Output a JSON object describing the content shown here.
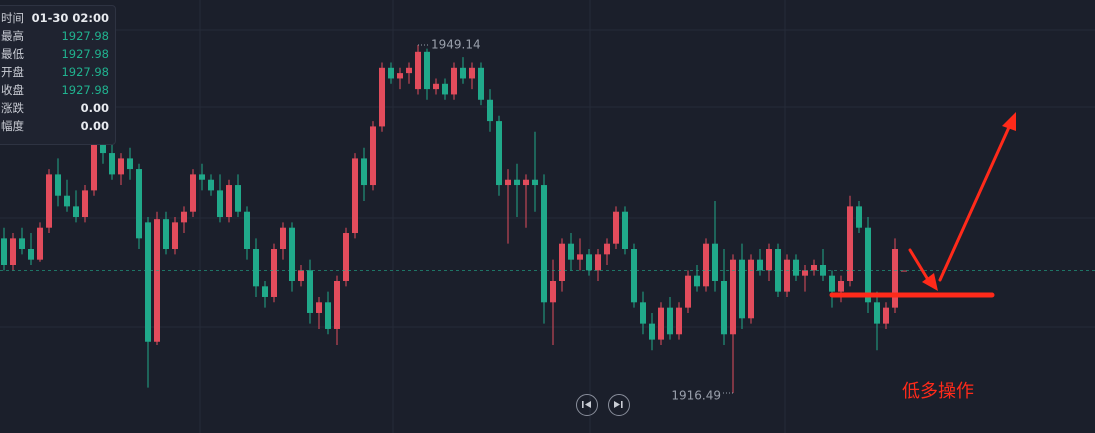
{
  "chart_data": {
    "type": "candlestick",
    "up_color": "#e24c5c",
    "down_color": "#20a98a",
    "ylim": [
      1912.74,
      1953.36
    ],
    "annotation": "低多操作",
    "open": [
      1931.0,
      1928.5,
      1931.0,
      1930.0,
      1929.0,
      1932.0,
      1937.0,
      1935.0,
      1934.0,
      1933.0,
      1935.5,
      1941.0,
      1939.0,
      1937.0,
      1938.5,
      1937.5,
      1932.5,
      1921.3,
      1932.8,
      1930.0,
      1932.5,
      1933.5,
      1937.0,
      1936.5,
      1935.5,
      1933.0,
      1936.0,
      1933.5,
      1930.0,
      1926.5,
      1925.5,
      1930.0,
      1932.0,
      1927.0,
      1928.0,
      1924.0,
      1925.0,
      1922.5,
      1927.0,
      1931.5,
      1938.5,
      1936.0,
      1941.5,
      1947.0,
      1946.0,
      1946.5,
      1945.0,
      1948.5,
      1945.0,
      1945.5,
      1944.5,
      1947.0,
      1946.0,
      1947.0,
      1944.0,
      1942.0,
      1936.0,
      1936.5,
      1936.0,
      1936.5,
      1936.0,
      1925.0,
      1927.0,
      1930.5,
      1929.0,
      1929.5,
      1928.0,
      1929.5,
      1930.5,
      1933.5,
      1930.0,
      1925.0,
      1923.0,
      1921.5,
      1924.5,
      1922.0,
      1924.5,
      1927.5,
      1926.5,
      1930.5,
      1927.0,
      1922.0,
      1929.0,
      1923.5,
      1929.0,
      1928.0,
      1930.0,
      1926.0,
      1929.0,
      1927.5,
      1928.0,
      1928.5,
      1927.5,
      1926.0,
      1927.0,
      1934.0,
      1932.0,
      1925.0,
      1923.0,
      1924.5,
      1927.98
    ],
    "high": [
      1932.0,
      1931.5,
      1932.0,
      1931.5,
      1932.5,
      1937.5,
      1938.5,
      1936.5,
      1935.5,
      1936.0,
      1942.0,
      1942.5,
      1940.5,
      1939.0,
      1939.5,
      1938.0,
      1933.0,
      1933.5,
      1933.5,
      1933.0,
      1934.0,
      1937.5,
      1938.0,
      1937.0,
      1937.0,
      1936.5,
      1937.0,
      1934.0,
      1931.0,
      1927.0,
      1930.5,
      1932.5,
      1932.5,
      1928.5,
      1929.0,
      1925.5,
      1926.0,
      1927.5,
      1932.0,
      1939.0,
      1939.5,
      1942.0,
      1947.5,
      1947.5,
      1947.0,
      1947.5,
      1949.14,
      1948.8,
      1946.0,
      1946.0,
      1947.5,
      1948.0,
      1947.5,
      1947.5,
      1945.0,
      1942.5,
      1937.5,
      1938.0,
      1937.0,
      1941.0,
      1937.0,
      1929.0,
      1931.0,
      1931.5,
      1931.0,
      1930.0,
      1930.0,
      1931.0,
      1934.0,
      1934.0,
      1930.5,
      1926.0,
      1924.0,
      1925.0,
      1925.5,
      1925.0,
      1928.0,
      1928.5,
      1931.0,
      1934.5,
      1930.0,
      1929.5,
      1930.5,
      1929.5,
      1930.0,
      1930.5,
      1930.5,
      1929.5,
      1929.5,
      1928.5,
      1929.0,
      1930.0,
      1928.0,
      1927.5,
      1935.0,
      1934.5,
      1933.0,
      1926.0,
      1925.0,
      1931.0,
      1927.98
    ],
    "low": [
      1928.0,
      1928.0,
      1929.5,
      1928.5,
      1928.8,
      1931.5,
      1934.0,
      1933.5,
      1932.5,
      1932.5,
      1935.0,
      1938.0,
      1936.5,
      1936.0,
      1936.5,
      1930.0,
      1917.0,
      1921.0,
      1929.5,
      1929.5,
      1931.5,
      1933.0,
      1935.5,
      1935.0,
      1932.5,
      1932.5,
      1933.0,
      1929.0,
      1925.5,
      1924.5,
      1925.0,
      1929.0,
      1926.0,
      1926.5,
      1923.0,
      1922.5,
      1922.0,
      1921.0,
      1926.5,
      1931.0,
      1934.5,
      1935.5,
      1941.0,
      1945.5,
      1945.0,
      1945.5,
      1944.5,
      1944.0,
      1944.5,
      1944.0,
      1944.0,
      1945.5,
      1945.0,
      1943.5,
      1941.0,
      1935.0,
      1930.5,
      1933.0,
      1932.0,
      1933.5,
      1923.0,
      1921.0,
      1926.0,
      1928.0,
      1928.0,
      1927.5,
      1927.0,
      1928.5,
      1930.0,
      1929.5,
      1924.5,
      1922.0,
      1920.5,
      1921.0,
      1921.5,
      1921.5,
      1924.0,
      1926.0,
      1926.0,
      1926.0,
      1921.0,
      1916.49,
      1922.5,
      1923.0,
      1927.5,
      1927.0,
      1925.5,
      1925.5,
      1927.0,
      1926.0,
      1927.5,
      1927.0,
      1924.5,
      1925.0,
      1926.5,
      1931.5,
      1924.0,
      1920.5,
      1922.5,
      1924.0,
      1927.98
    ],
    "close": [
      1928.5,
      1931.0,
      1930.0,
      1929.0,
      1932.0,
      1937.0,
      1935.0,
      1934.0,
      1933.0,
      1935.5,
      1941.0,
      1939.0,
      1937.0,
      1938.5,
      1937.5,
      1931.0,
      1921.3,
      1932.8,
      1930.0,
      1932.5,
      1933.5,
      1937.0,
      1936.5,
      1935.5,
      1933.0,
      1936.0,
      1933.5,
      1930.0,
      1926.5,
      1925.5,
      1930.0,
      1932.0,
      1927.0,
      1928.0,
      1924.0,
      1925.0,
      1922.5,
      1927.0,
      1931.5,
      1938.5,
      1936.0,
      1941.5,
      1947.0,
      1946.0,
      1946.5,
      1947.0,
      1948.5,
      1945.0,
      1945.5,
      1944.5,
      1947.0,
      1946.0,
      1947.0,
      1944.0,
      1942.0,
      1936.0,
      1936.5,
      1936.0,
      1936.5,
      1936.0,
      1925.0,
      1927.0,
      1930.5,
      1929.0,
      1929.5,
      1928.0,
      1929.5,
      1930.5,
      1933.5,
      1930.0,
      1925.0,
      1923.0,
      1921.5,
      1924.5,
      1922.0,
      1924.5,
      1927.5,
      1926.5,
      1930.5,
      1927.0,
      1922.0,
      1929.0,
      1923.5,
      1929.0,
      1928.0,
      1930.0,
      1926.0,
      1929.0,
      1927.5,
      1928.0,
      1928.5,
      1927.5,
      1926.0,
      1927.0,
      1934.0,
      1932.0,
      1925.0,
      1923.0,
      1924.5,
      1930.0,
      1927.98
    ]
  },
  "tooltip": {
    "rows": [
      {
        "label": "时间",
        "value": "01-30 02:00"
      },
      {
        "label": "最高",
        "value": "1927.98"
      },
      {
        "label": "最低",
        "value": "1927.98"
      },
      {
        "label": "开盘",
        "value": "1927.98"
      },
      {
        "label": "收盘",
        "value": "1927.98"
      },
      {
        "label": "涨跌",
        "value": "0.00"
      },
      {
        "label": "幅度",
        "value": "0.00"
      }
    ]
  }
}
